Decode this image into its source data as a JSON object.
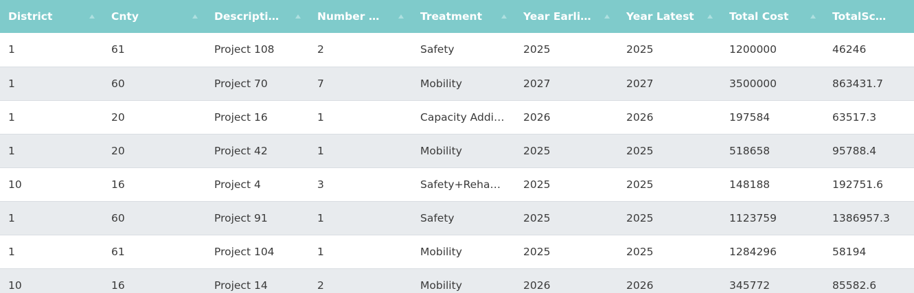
{
  "table": {
    "columns": [
      {
        "label": "District",
        "sort_icon": "sort-up-icon"
      },
      {
        "label": "Cnty",
        "sort_icon": "sort-up-icon"
      },
      {
        "label": "Description",
        "sort_icon": "sort-up-icon"
      },
      {
        "label": "Number Of Sites",
        "sort_icon": "sort-up-icon"
      },
      {
        "label": "Treatment",
        "sort_icon": "sort-up-icon"
      },
      {
        "label": "Year Earliest",
        "sort_icon": "sort-up-icon"
      },
      {
        "label": "Year Latest",
        "sort_icon": "sort-up-icon"
      },
      {
        "label": "Total Cost",
        "sort_icon": "sort-up-icon"
      },
      {
        "label": "TotalScaledBenefit",
        "sort_icon": "sort-up-icon"
      }
    ],
    "rows": [
      [
        "1",
        "61",
        "Project 108",
        "2",
        "Safety",
        "2025",
        "2025",
        "1200000",
        "46246"
      ],
      [
        "1",
        "60",
        "Project 70",
        "7",
        "Mobility",
        "2027",
        "2027",
        "3500000",
        "863431.7"
      ],
      [
        "1",
        "20",
        "Project 16",
        "1",
        "Capacity Addition",
        "2026",
        "2026",
        "197584",
        "63517.3"
      ],
      [
        "1",
        "20",
        "Project 42",
        "1",
        "Mobility",
        "2025",
        "2025",
        "518658",
        "95788.4"
      ],
      [
        "10",
        "16",
        "Project 4",
        "3",
        "Safety+Rehabilitation",
        "2025",
        "2025",
        "148188",
        "192751.6"
      ],
      [
        "1",
        "60",
        "Project 91",
        "1",
        "Safety",
        "2025",
        "2025",
        "1123759",
        "1386957.3"
      ],
      [
        "1",
        "61",
        "Project 104",
        "1",
        "Mobility",
        "2025",
        "2025",
        "1284296",
        "58194"
      ],
      [
        "10",
        "16",
        "Project 14",
        "2",
        "Mobility",
        "2026",
        "2026",
        "345772",
        "85582.6"
      ]
    ]
  },
  "colors": {
    "header_bg": "#7fcbcb",
    "header_text": "#ffffff",
    "row_alt_bg": "#e8ebee",
    "cell_text": "#3a3a3a"
  }
}
